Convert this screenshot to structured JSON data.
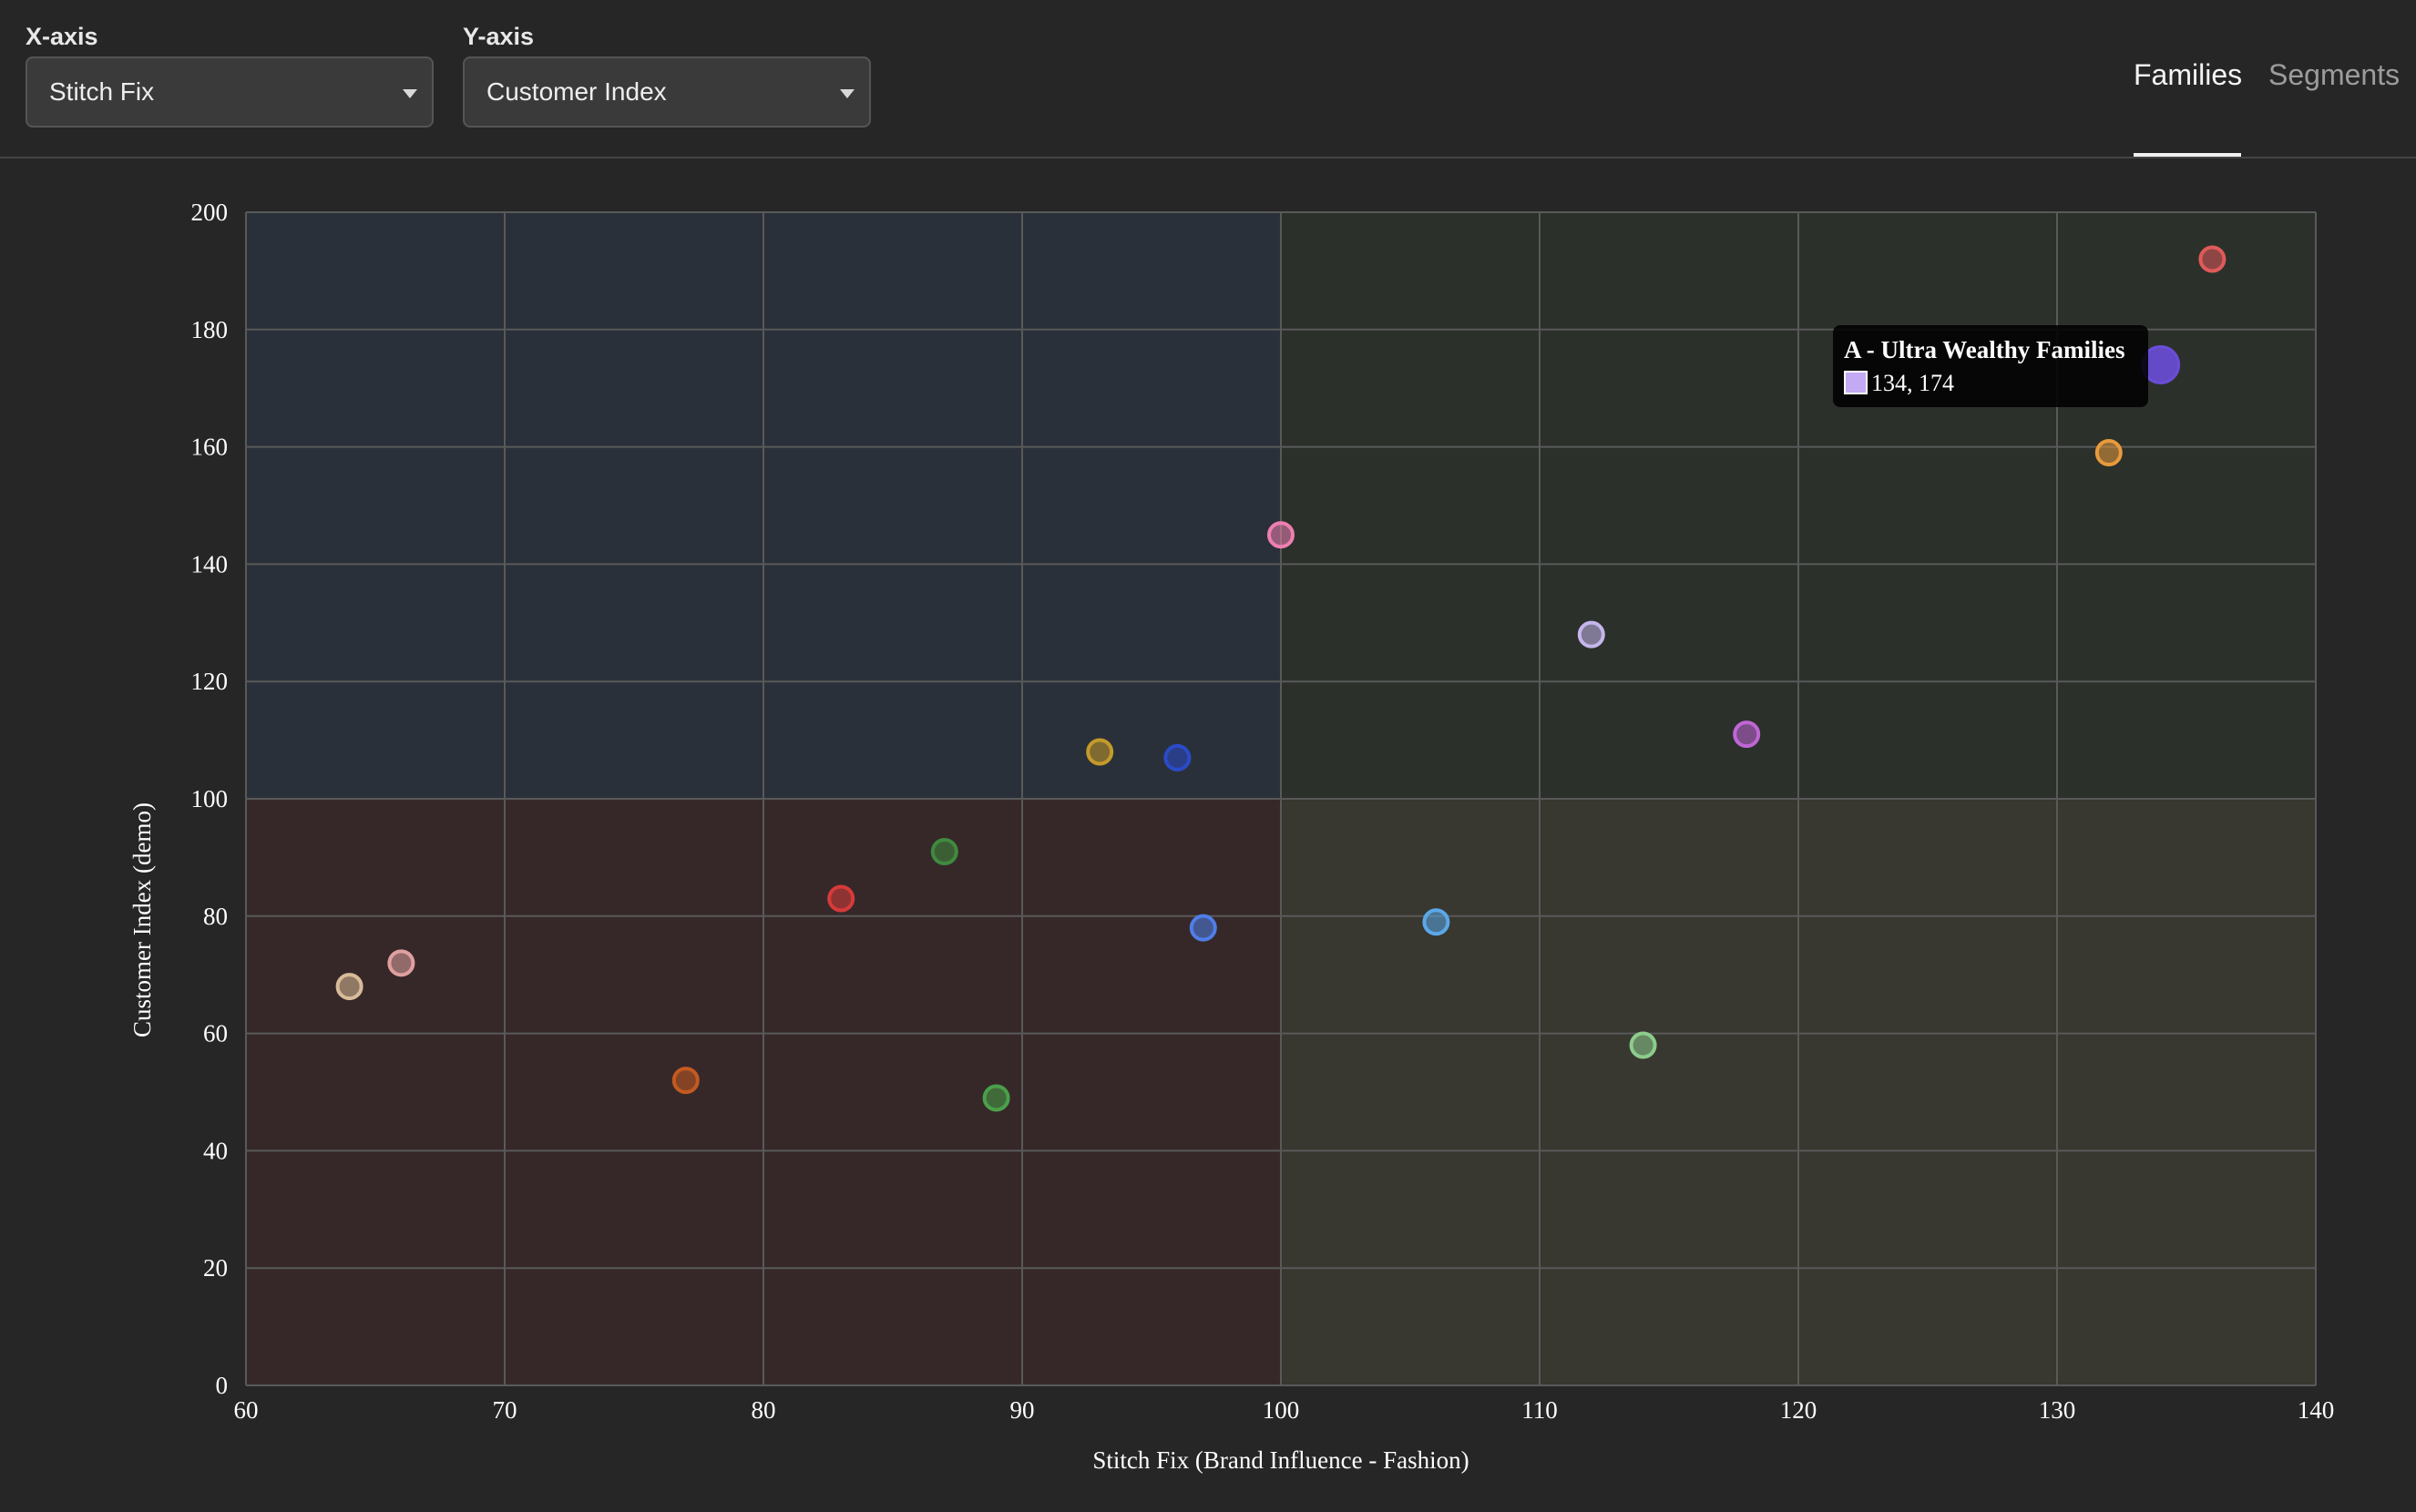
{
  "controls": {
    "x_axis": {
      "label": "X-axis",
      "selected": "Stitch Fix"
    },
    "y_axis": {
      "label": "Y-axis",
      "selected": "Customer Index"
    }
  },
  "tabs": [
    {
      "label": "Families",
      "active": true
    },
    {
      "label": "Segments",
      "active": false
    }
  ],
  "tooltip": {
    "title": "A - Ultra Wealthy Families",
    "value_text": "134, 174",
    "color": "#c2aaf4"
  },
  "chart_data": {
    "type": "scatter",
    "xlabel": "Stitch Fix (Brand Influence - Fashion)",
    "ylabel": "Customer Index (demo)",
    "xlim": [
      60,
      140
    ],
    "ylim": [
      0,
      200
    ],
    "x_ticks": [
      60,
      70,
      80,
      90,
      100,
      110,
      120,
      130,
      140
    ],
    "y_ticks": [
      0,
      20,
      40,
      60,
      80,
      100,
      120,
      140,
      160,
      180,
      200
    ],
    "grid": true,
    "quadrants": [
      {
        "position": "top-left",
        "color": "#2a3039"
      },
      {
        "position": "top-right",
        "color": "#2b302b"
      },
      {
        "position": "bottom-left",
        "color": "#362829"
      },
      {
        "position": "bottom-right",
        "color": "#383730"
      }
    ],
    "quadrant_split": {
      "x": 100,
      "y": 100
    },
    "points": [
      {
        "x": 136,
        "y": 192,
        "color": "#e05a5a"
      },
      {
        "x": 134,
        "y": 174,
        "color": "#6a4ed8",
        "highlighted": true
      },
      {
        "x": 132,
        "y": 159,
        "color": "#e89a3c"
      },
      {
        "x": 100,
        "y": 145,
        "color": "#ee7fb0"
      },
      {
        "x": 112,
        "y": 128,
        "color": "#c5b6ec"
      },
      {
        "x": 118,
        "y": 111,
        "color": "#c066d6"
      },
      {
        "x": 93,
        "y": 108,
        "color": "#c49a2a"
      },
      {
        "x": 96,
        "y": 107,
        "color": "#2a4bc8"
      },
      {
        "x": 87,
        "y": 91,
        "color": "#3f8a3f"
      },
      {
        "x": 83,
        "y": 83,
        "color": "#d83a3a"
      },
      {
        "x": 97,
        "y": 78,
        "color": "#4f7ee8"
      },
      {
        "x": 106,
        "y": 79,
        "color": "#5aa8e8"
      },
      {
        "x": 66,
        "y": 72,
        "color": "#e0a0a0"
      },
      {
        "x": 64,
        "y": 68,
        "color": "#d8bc98"
      },
      {
        "x": 114,
        "y": 58,
        "color": "#8ccc8c"
      },
      {
        "x": 77,
        "y": 52,
        "color": "#c45a20"
      },
      {
        "x": 89,
        "y": 49,
        "color": "#4aa04a"
      }
    ]
  }
}
